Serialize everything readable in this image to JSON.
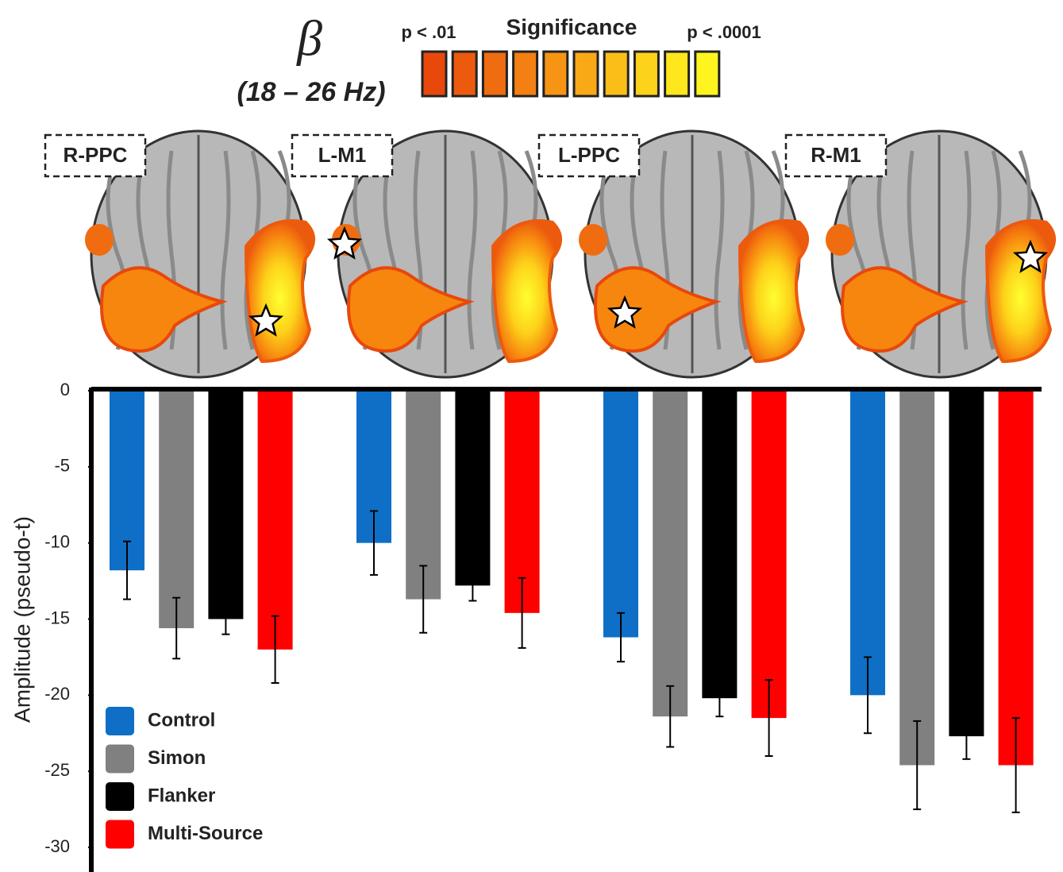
{
  "chart_data": {
    "type": "bar",
    "symbol": "β",
    "band": "(18 – 26 Hz)",
    "colorbar_title": "Significance",
    "colorbar_low": "p < .01",
    "colorbar_high": "p < .0001",
    "colorbar_colors": [
      "#e8480c",
      "#ec5a0e",
      "#f06c10",
      "#f47f12",
      "#f79414",
      "#f9a816",
      "#fbbd18",
      "#fdd21a",
      "#fee71c",
      "#fff51e"
    ],
    "ylabel": "Amplitude (pseudo-t)",
    "categories": [
      "R-PPC",
      "L-M1",
      "L-PPC",
      "R-M1"
    ],
    "series": [
      {
        "name": "Control",
        "color": "#0f6fc6",
        "values": [
          -11.8,
          -10.0,
          -16.2,
          -20.0
        ],
        "errors": [
          1.9,
          2.1,
          1.6,
          2.5
        ]
      },
      {
        "name": "Simon",
        "color": "#808080",
        "values": [
          -15.6,
          -13.7,
          -21.4,
          -24.6
        ],
        "errors": [
          2.0,
          2.2,
          2.0,
          2.9
        ]
      },
      {
        "name": "Flanker",
        "color": "#000000",
        "values": [
          -15.0,
          -12.8,
          -20.2,
          -22.7
        ],
        "errors": [
          1.0,
          1.0,
          1.2,
          1.5
        ]
      },
      {
        "name": "Multi-Source",
        "color": "#ff0000",
        "values": [
          -17.0,
          -14.6,
          -21.5,
          -24.6
        ],
        "errors": [
          2.2,
          2.3,
          2.5,
          3.1
        ]
      }
    ],
    "ylim": [
      -30,
      0
    ],
    "yticks": [
      0,
      -5,
      -10,
      -15,
      -20,
      -25,
      -30
    ]
  }
}
